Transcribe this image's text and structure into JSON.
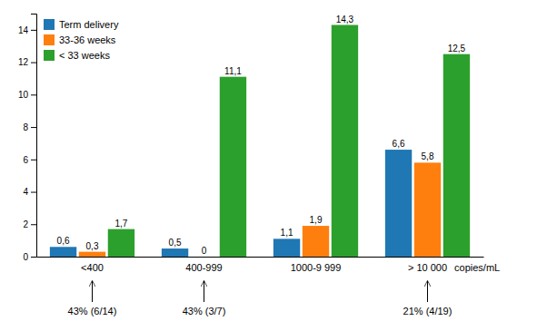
{
  "chart_data": {
    "type": "bar",
    "categories": [
      "<400",
      "400-999",
      "1000-9 999",
      "> 10 000"
    ],
    "series": [
      {
        "name": "Term delivery",
        "values": [
          0.6,
          0.5,
          1.1,
          6.6
        ],
        "value_labels": [
          "0,6",
          "0,5",
          "1,1",
          "6,6"
        ]
      },
      {
        "name": "33-36 weeks",
        "values": [
          0.3,
          0.0,
          1.9,
          5.8
        ],
        "value_labels": [
          "0,3",
          "0",
          "1,9",
          "5,8"
        ]
      },
      {
        "name": "< 33 weeks",
        "values": [
          1.7,
          11.1,
          14.3,
          12.5
        ],
        "value_labels": [
          "1,7",
          "11,1",
          "14,3",
          "12,5"
        ]
      }
    ],
    "xlabel": "copies/mL",
    "annotations": [
      {
        "text": "43% (6/14)",
        "category": "<400"
      },
      {
        "text": "43% (3/7)",
        "category": "400-999"
      },
      {
        "text": "21% (4/19)",
        "category": "> 10 000"
      }
    ],
    "ylim": [
      0,
      15
    ],
    "yticks": [
      0,
      2,
      4,
      6,
      8,
      10,
      12,
      14
    ],
    "legend": "upper left",
    "data_labels": true
  }
}
